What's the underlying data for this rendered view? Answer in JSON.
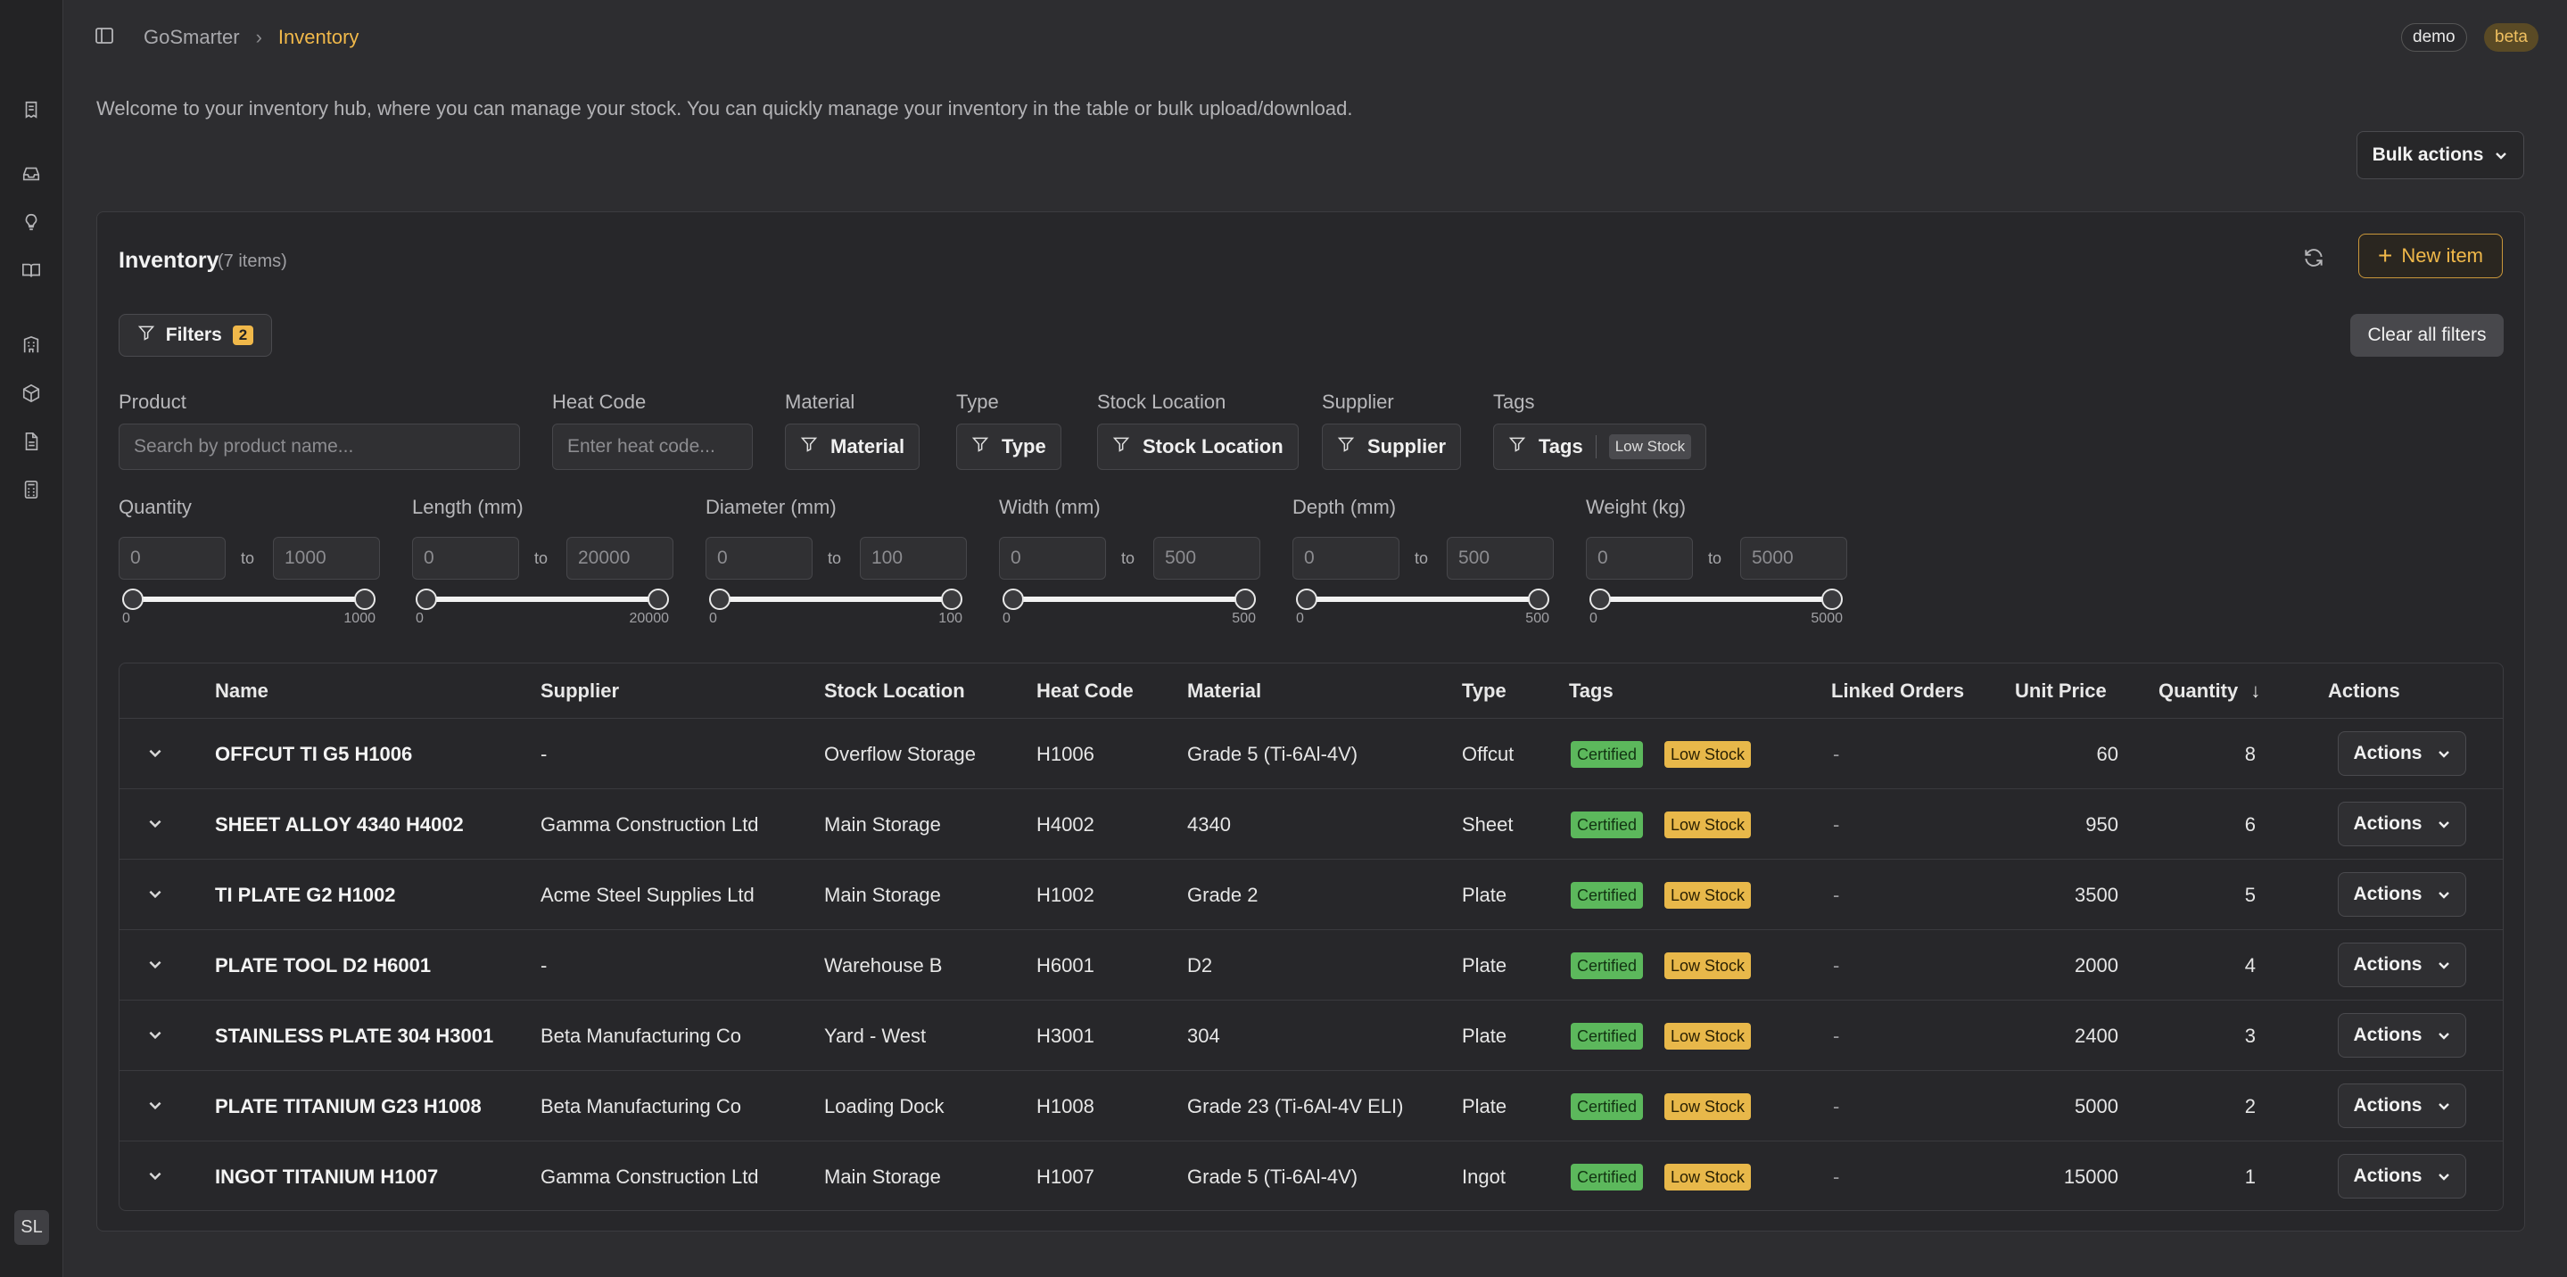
{
  "topbar": {
    "breadcrumb": [
      "GoSmarter",
      "Inventory"
    ],
    "pills": {
      "demo": "demo",
      "beta": "beta"
    }
  },
  "welcome": "Welcome to your inventory hub, where you can manage your stock. You can quickly manage your inventory in the table or bulk upload/download.",
  "bulk_actions_label": "Bulk actions",
  "rail": {
    "icons": [
      "receipt-icon",
      "inbox-icon",
      "lightbulb-icon",
      "book-icon",
      "building-icon",
      "package-icon",
      "document-icon",
      "calculator-icon"
    ],
    "avatar": "SL"
  },
  "panel": {
    "title": "Inventory",
    "count": "(7 items)",
    "new_item_label": "New item",
    "filters_label": "Filters",
    "filters_count": "2",
    "clear_all_label": "Clear all filters"
  },
  "filters": {
    "product": {
      "label": "Product",
      "placeholder": "Search by product name..."
    },
    "heat_code": {
      "label": "Heat Code",
      "placeholder": "Enter heat code..."
    },
    "material": {
      "label": "Material",
      "button": "Material"
    },
    "type": {
      "label": "Type",
      "button": "Type"
    },
    "stock_location": {
      "label": "Stock Location",
      "button": "Stock Location"
    },
    "supplier": {
      "label": "Supplier",
      "button": "Supplier"
    },
    "tags": {
      "label": "Tags",
      "button": "Tags",
      "selected": "Low Stock"
    },
    "to_label": "to",
    "ranges": [
      {
        "label": "Quantity",
        "min": "0",
        "max": "1000"
      },
      {
        "label": "Length (mm)",
        "min": "0",
        "max": "20000"
      },
      {
        "label": "Diameter (mm)",
        "min": "0",
        "max": "100"
      },
      {
        "label": "Width (mm)",
        "min": "0",
        "max": "500"
      },
      {
        "label": "Depth (mm)",
        "min": "0",
        "max": "500"
      },
      {
        "label": "Weight (kg)",
        "min": "0",
        "max": "5000"
      }
    ]
  },
  "table": {
    "headers": {
      "name": "Name",
      "supplier": "Supplier",
      "location": "Stock Location",
      "heat": "Heat Code",
      "material": "Material",
      "type": "Type",
      "tags": "Tags",
      "linked": "Linked Orders",
      "price": "Unit Price",
      "qty": "Quantity",
      "actions": "Actions"
    },
    "sort_icon": "arrow-down-icon",
    "action_label": "Actions",
    "tag_labels": {
      "certified": "Certified",
      "low": "Low Stock"
    },
    "rows": [
      {
        "name": "OFFCUT TI G5 H1006",
        "supplier": "-",
        "location": "Overflow Storage",
        "heat": "H1006",
        "material": "Grade 5 (Ti-6Al-4V)",
        "type": "Offcut",
        "linked": "-",
        "price": "60",
        "qty": "8"
      },
      {
        "name": "SHEET ALLOY 4340 H4002",
        "supplier": "Gamma Construction Ltd",
        "location": "Main Storage",
        "heat": "H4002",
        "material": "4340",
        "type": "Sheet",
        "linked": "-",
        "price": "950",
        "qty": "6"
      },
      {
        "name": "TI PLATE G2 H1002",
        "supplier": "Acme Steel Supplies Ltd",
        "location": "Main Storage",
        "heat": "H1002",
        "material": "Grade 2",
        "type": "Plate",
        "linked": "-",
        "price": "3500",
        "qty": "5"
      },
      {
        "name": "PLATE TOOL D2 H6001",
        "supplier": "-",
        "location": "Warehouse B",
        "heat": "H6001",
        "material": "D2",
        "type": "Plate",
        "linked": "-",
        "price": "2000",
        "qty": "4"
      },
      {
        "name": "STAINLESS PLATE 304 H3001",
        "supplier": "Beta Manufacturing Co",
        "location": "Yard - West",
        "heat": "H3001",
        "material": "304",
        "type": "Plate",
        "linked": "-",
        "price": "2400",
        "qty": "3"
      },
      {
        "name": "PLATE TITANIUM G23 H1008",
        "supplier": "Beta Manufacturing Co",
        "location": "Loading Dock",
        "heat": "H1008",
        "material": "Grade 23 (Ti-6Al-4V ELI)",
        "type": "Plate",
        "linked": "-",
        "price": "5000",
        "qty": "2"
      },
      {
        "name": "INGOT TITANIUM H1007",
        "supplier": "Gamma Construction Ltd",
        "location": "Main Storage",
        "heat": "H1007",
        "material": "Grade 5 (Ti-6Al-4V)",
        "type": "Ingot",
        "linked": "-",
        "price": "15000",
        "qty": "1"
      }
    ]
  },
  "colors": {
    "accent": "#f0b84a",
    "certified": "#5cb85c",
    "low_stock": "#e8b84a",
    "background": "#2d2d30"
  }
}
